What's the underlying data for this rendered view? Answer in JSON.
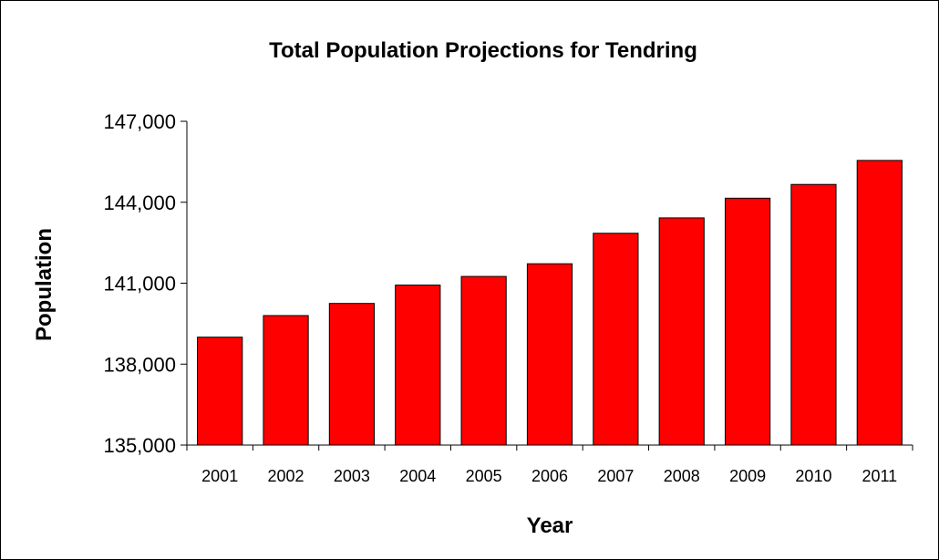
{
  "chart_data": {
    "type": "bar",
    "title": "Total Population Projections for Tendring",
    "xlabel": "Year",
    "ylabel": "Population",
    "categories": [
      "2001",
      "2002",
      "2003",
      "2004",
      "2005",
      "2006",
      "2007",
      "2008",
      "2009",
      "2010",
      "2011"
    ],
    "values": [
      139000,
      139800,
      140250,
      140930,
      141250,
      141720,
      142850,
      143420,
      144150,
      144660,
      145550
    ],
    "ylim": [
      135000,
      147000
    ],
    "yticks": [
      135000,
      138000,
      141000,
      144000,
      147000
    ],
    "ytick_labels": [
      "135,000",
      "138,000",
      "141,000",
      "144,000",
      "147,000"
    ],
    "bar_color": "#ff0000",
    "bar_edge_color": "#000000",
    "grid": false,
    "legend": false
  }
}
